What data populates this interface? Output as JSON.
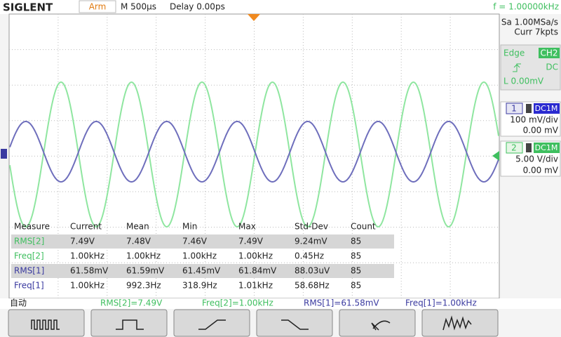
{
  "top_bar": {
    "brand": "SIGLENT",
    "state": "Arm",
    "timebase": "M 500μs",
    "delay": "Delay 0.00ps",
    "frequency": "f = 1.00000kHz"
  },
  "right_panel": {
    "sample_rate": "Sa 1.00MSa/s",
    "memory": "Curr 7kpts",
    "trigger": {
      "mode": "Edge",
      "source": "CH2",
      "coupling": "DC",
      "level": "L  0.00mV"
    },
    "channels": [
      {
        "number": "1",
        "coupling": "DC1M",
        "scale": "100 mV/div",
        "offset": "0.00 mV"
      },
      {
        "number": "2",
        "coupling": "DC1M",
        "scale": "5.00 V/div",
        "offset": "0.00 mV"
      }
    ]
  },
  "measure": {
    "headers": [
      "Measure",
      "Current",
      "Mean",
      "Min",
      "Max",
      "Std-Dev",
      "Count"
    ],
    "rows": [
      [
        "RMS[2]",
        "7.49V",
        "7.48V",
        "7.46V",
        "7.49V",
        "9.24mV",
        "85"
      ],
      [
        "Freq[2]",
        "1.00kHz",
        "1.00kHz",
        "1.00kHz",
        "1.00kHz",
        "0.45Hz",
        "85"
      ],
      [
        "RMS[1]",
        "61.58mV",
        "61.59mV",
        "61.45mV",
        "61.84mV",
        "88.03uV",
        "85"
      ],
      [
        "Freq[1]",
        "1.00kHz",
        "992.3Hz",
        "318.9Hz",
        "1.01kHz",
        "58.68Hz",
        "85"
      ]
    ]
  },
  "status_bar": {
    "mode": "自动",
    "items": [
      "RMS[2]=7.49V",
      "Freq[2]=1.00kHz",
      "RMS[1]=61.58mV",
      "Freq[1]=1.00kHz"
    ]
  }
}
